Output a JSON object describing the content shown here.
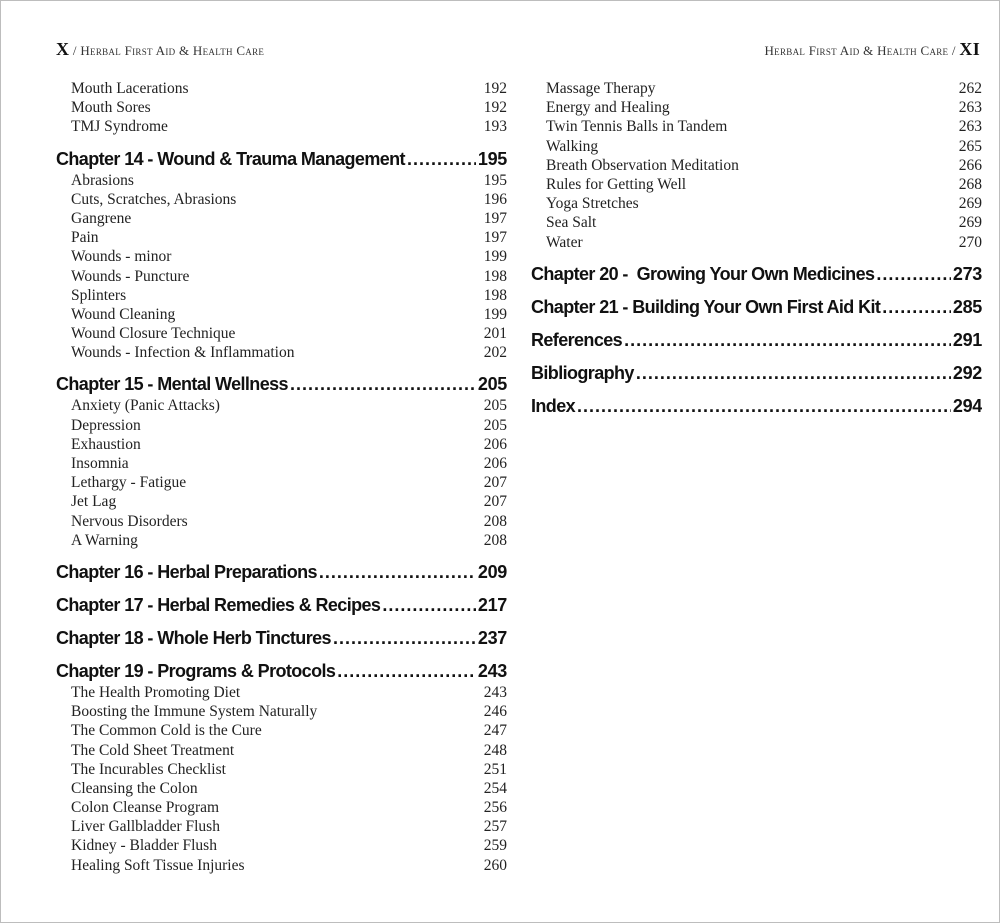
{
  "header_left": {
    "page": "X",
    "title": "/ Herbal First Aid & Health Care"
  },
  "header_right": {
    "title": "Herbal First Aid & Health Care /",
    "page": "XI"
  },
  "left_column": [
    {
      "type": "sub",
      "label": "Mouth Lacerations",
      "page": "192"
    },
    {
      "type": "sub",
      "label": "Mouth Sores",
      "page": "192"
    },
    {
      "type": "sub",
      "label": "TMJ Syndrome",
      "page": "193"
    },
    {
      "type": "chapter",
      "label": "Chapter 14 - Wound & Trauma Management",
      "page": "195"
    },
    {
      "type": "sub",
      "label": "Abrasions",
      "page": "195"
    },
    {
      "type": "sub",
      "label": "Cuts, Scratches, Abrasions",
      "page": "196"
    },
    {
      "type": "sub",
      "label": "Gangrene",
      "page": "197"
    },
    {
      "type": "sub",
      "label": "Pain",
      "page": "197"
    },
    {
      "type": "sub",
      "label": "Wounds - minor",
      "page": "199"
    },
    {
      "type": "sub",
      "label": "Wounds - Puncture",
      "page": "198"
    },
    {
      "type": "sub",
      "label": "Splinters",
      "page": "198"
    },
    {
      "type": "sub",
      "label": "Wound Cleaning",
      "page": "199"
    },
    {
      "type": "sub",
      "label": "Wound Closure Technique",
      "page": "201"
    },
    {
      "type": "sub",
      "label": "Wounds - Infection & Inflammation",
      "page": "202"
    },
    {
      "type": "chapter",
      "label": "Chapter 15 - Mental Wellness",
      "page": "205"
    },
    {
      "type": "sub",
      "label": "Anxiety (Panic Attacks)",
      "page": "205"
    },
    {
      "type": "sub",
      "label": "Depression",
      "page": "205"
    },
    {
      "type": "sub",
      "label": "Exhaustion",
      "page": "206"
    },
    {
      "type": "sub",
      "label": "Insomnia",
      "page": "206"
    },
    {
      "type": "sub",
      "label": "Lethargy - Fatigue",
      "page": "207"
    },
    {
      "type": "sub",
      "label": "Jet Lag",
      "page": "207"
    },
    {
      "type": "sub",
      "label": "Nervous Disorders",
      "page": "208"
    },
    {
      "type": "sub",
      "label": "A Warning",
      "page": "208"
    },
    {
      "type": "chapter",
      "label": "Chapter 16 - Herbal Preparations",
      "page": "209"
    },
    {
      "type": "chapter",
      "label": "Chapter 17 - Herbal Remedies & Recipes",
      "page": "217"
    },
    {
      "type": "chapter",
      "label": "Chapter 18 - Whole Herb Tinctures",
      "page": "237"
    },
    {
      "type": "chapter",
      "label": "Chapter 19 - Programs & Protocols",
      "page": "243"
    },
    {
      "type": "sub",
      "label": "The Health Promoting Diet",
      "page": "243"
    },
    {
      "type": "sub",
      "label": "Boosting the Immune System Naturally",
      "page": "246"
    },
    {
      "type": "sub",
      "label": "The Common Cold is the Cure",
      "page": "247"
    },
    {
      "type": "sub",
      "label": "The Cold Sheet Treatment",
      "page": "248"
    },
    {
      "type": "sub",
      "label": "The Incurables Checklist",
      "page": "251"
    },
    {
      "type": "sub",
      "label": "Cleansing the Colon",
      "page": "254"
    },
    {
      "type": "sub",
      "label": "Colon Cleanse Program",
      "page": "256"
    },
    {
      "type": "sub",
      "label": "Liver Gallbladder Flush",
      "page": "257"
    },
    {
      "type": "sub",
      "label": "Kidney - Bladder Flush",
      "page": "259"
    },
    {
      "type": "sub",
      "label": "Healing Soft Tissue Injuries",
      "page": "260"
    }
  ],
  "right_column": [
    {
      "type": "sub",
      "label": "Massage Therapy",
      "page": "262"
    },
    {
      "type": "sub",
      "label": "Energy and Healing",
      "page": "263"
    },
    {
      "type": "sub",
      "label": "Twin Tennis Balls in Tandem",
      "page": "263"
    },
    {
      "type": "sub",
      "label": "Walking",
      "page": "265"
    },
    {
      "type": "sub",
      "label": "Breath Observation Meditation",
      "page": "266"
    },
    {
      "type": "sub",
      "label": "Rules for Getting Well",
      "page": "268"
    },
    {
      "type": "sub",
      "label": "Yoga Stretches",
      "page": "269"
    },
    {
      "type": "sub",
      "label": "Sea Salt",
      "page": "269"
    },
    {
      "type": "sub",
      "label": "Water",
      "page": "270"
    },
    {
      "type": "chapter",
      "label": "Chapter 20 -  Growing Your Own Medicines",
      "page": "273"
    },
    {
      "type": "chapter",
      "label": "Chapter 21 - Building Your Own First Aid Kit",
      "page": "285"
    },
    {
      "type": "chapter",
      "label": "References",
      "page": "291"
    },
    {
      "type": "chapter",
      "label": "Bibliography",
      "page": "292"
    },
    {
      "type": "chapter",
      "label": "Index",
      "page": "294"
    }
  ]
}
